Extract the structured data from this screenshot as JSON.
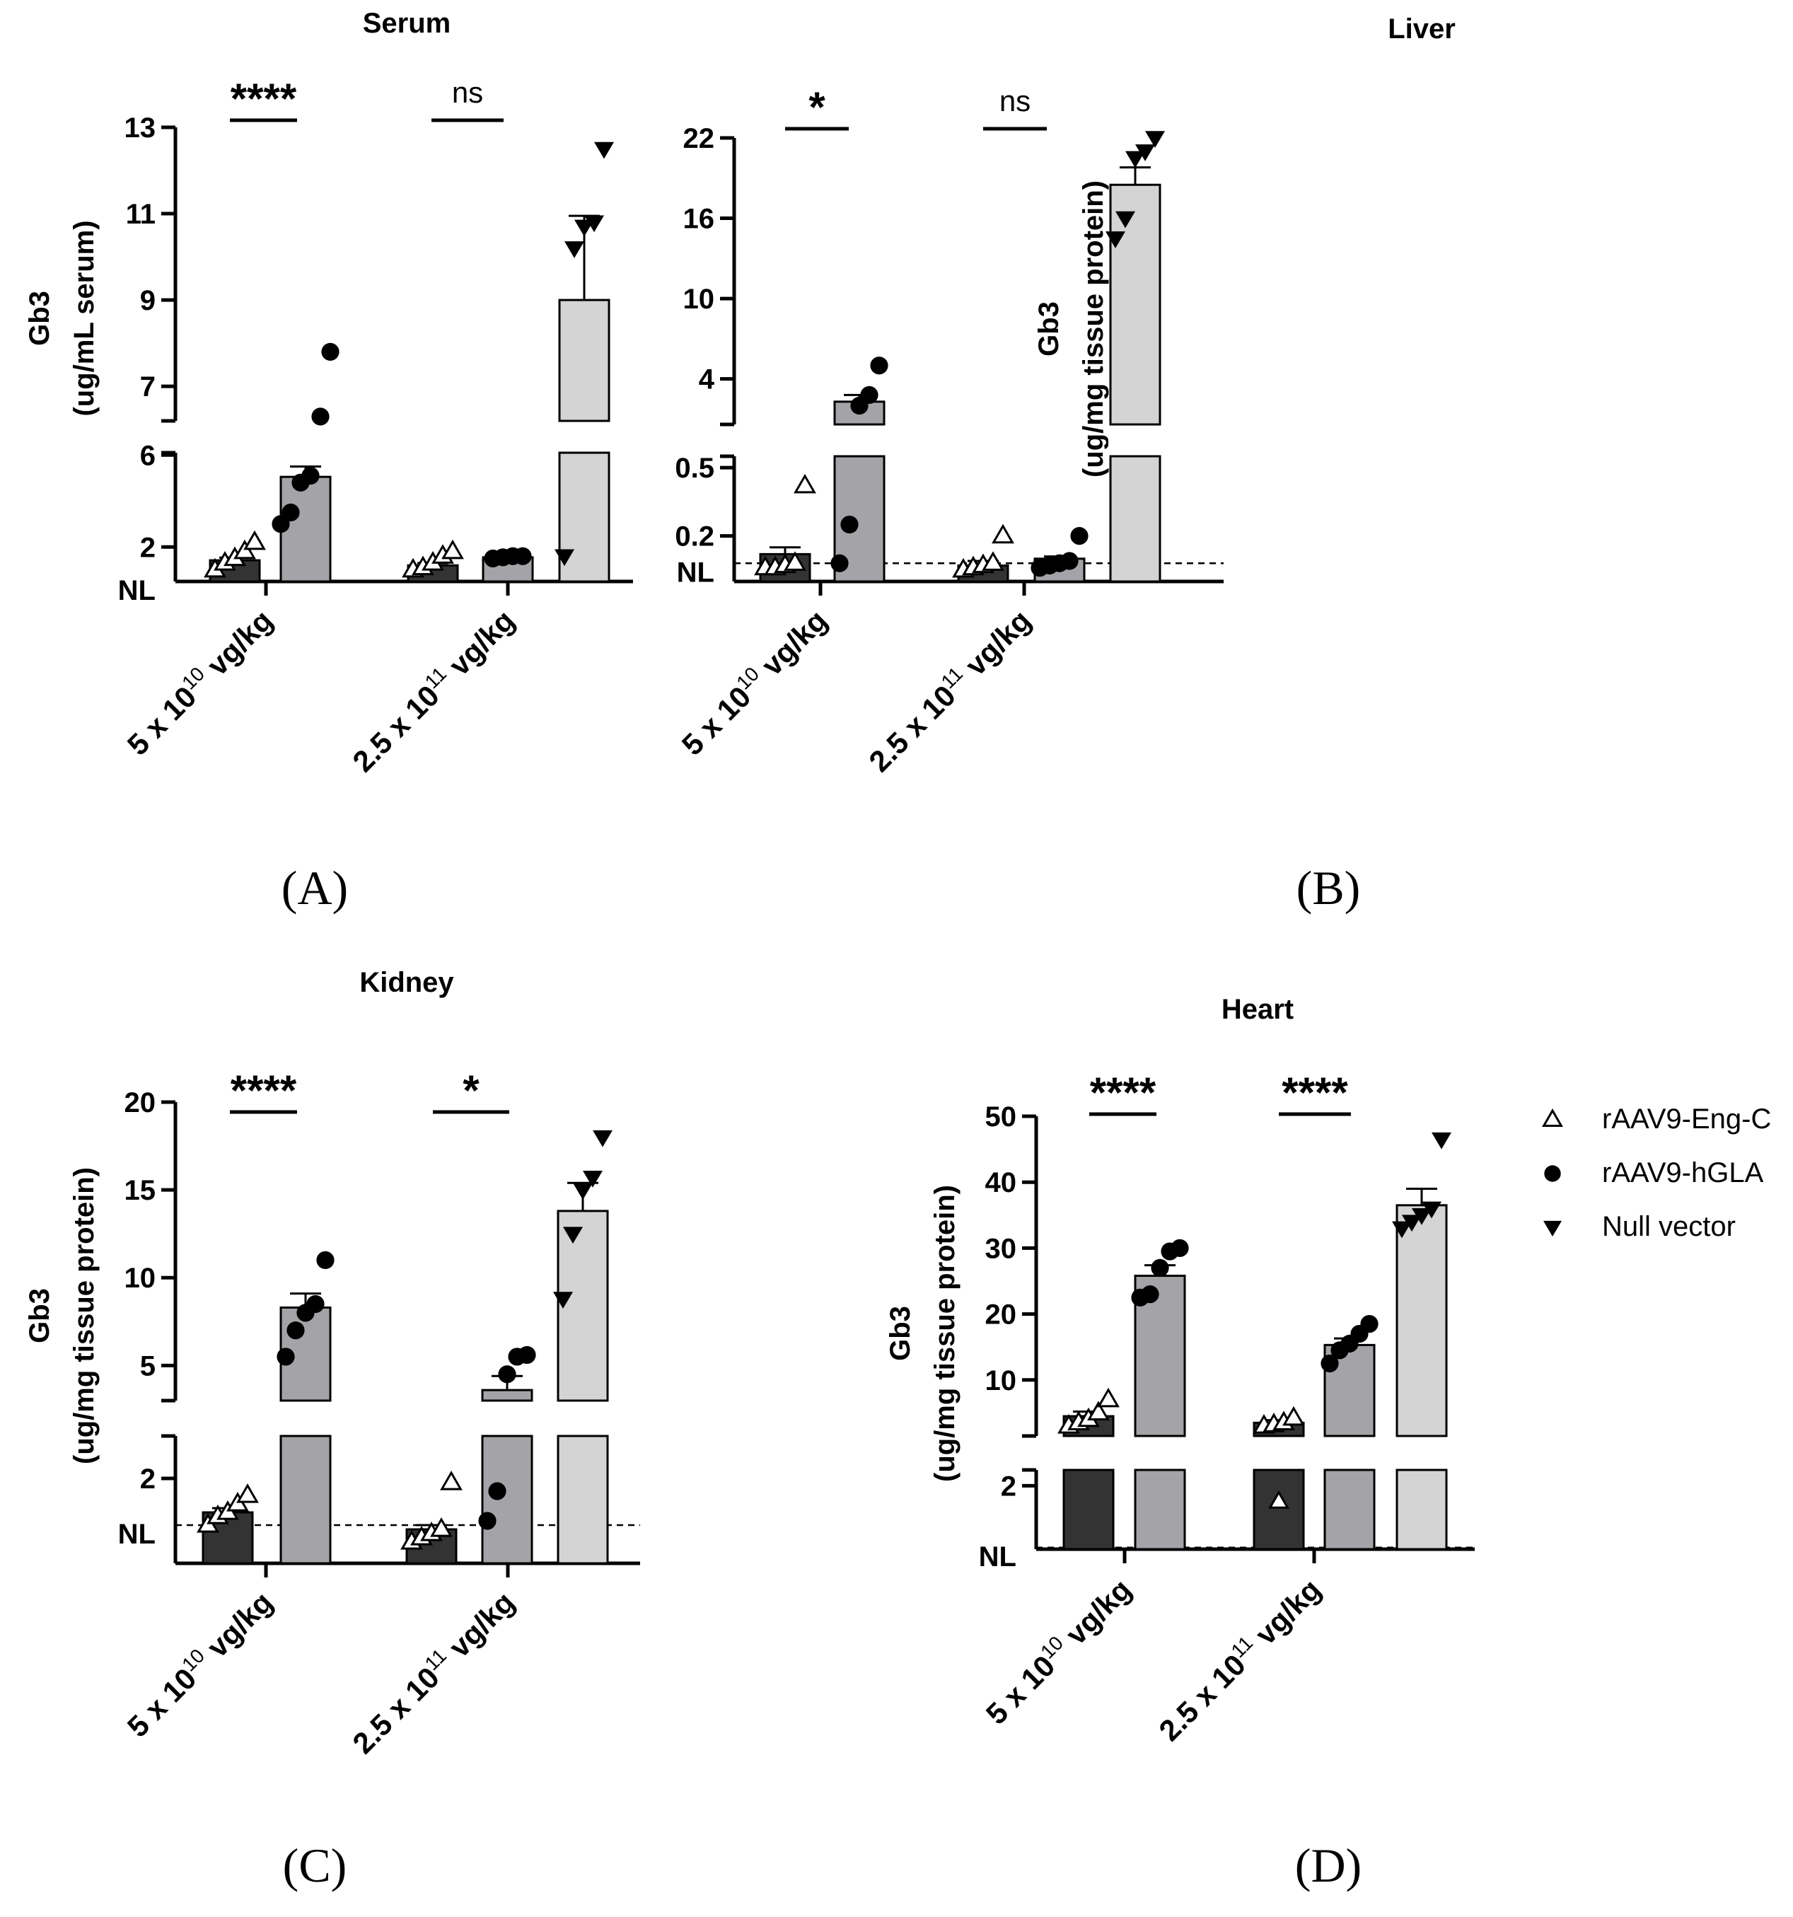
{
  "chart_data": [
    {
      "type": "bar",
      "panel_label": "(A)",
      "title": "Serum",
      "ylabel": "Gb3",
      "ylabel_units": "(ug/mL serum)",
      "baseline_label": "NL",
      "baseline_value": 0.5,
      "y_axis": {
        "broken": true,
        "lower": {
          "range": [
            0.5,
            6.1
          ],
          "ticks": [
            2,
            6
          ]
        },
        "upper": {
          "range": [
            6.2,
            13
          ],
          "ticks": [
            7,
            9,
            11,
            13
          ]
        }
      },
      "groups": [
        "5 x 10^10 vg/kg",
        "2.5 x 10^11 vg/kg"
      ],
      "series": [
        {
          "name": "rAAV9-Eng-C",
          "group": 0,
          "mean": 1.42,
          "sem": 0.12,
          "points": [
            1.0,
            1.3,
            1.5,
            1.8,
            2.2
          ]
        },
        {
          "name": "rAAV9-hGLA",
          "group": 0,
          "mean": 5.05,
          "sem": 0.45,
          "points": [
            3.0,
            3.5,
            4.8,
            5.1,
            6.3,
            7.8
          ]
        },
        {
          "name": "rAAV9-Eng-C",
          "group": 1,
          "mean": 1.2,
          "sem": 0.1,
          "points": [
            1.0,
            1.1,
            1.3,
            1.6,
            1.8
          ]
        },
        {
          "name": "rAAV9-hGLA",
          "group": 1,
          "mean": 1.55,
          "sem": 0.05,
          "points": [
            1.5,
            1.55,
            1.6,
            1.6
          ]
        },
        {
          "name": "Null vector",
          "group": 1,
          "mean": 9.0,
          "sem": 1.95,
          "points": [
            1.6,
            10.2,
            10.7,
            10.8,
            12.5
          ]
        }
      ],
      "significance": [
        {
          "group": 0,
          "label": "****"
        },
        {
          "group": 1,
          "label": "ns"
        }
      ]
    },
    {
      "type": "bar",
      "panel_label": "(B)",
      "title": "Liver",
      "ylabel": "Gb3",
      "ylabel_units": "(ug/mg tissue protein)",
      "baseline_label": "NL",
      "baseline_value": 0.08,
      "y_axis": {
        "broken": true,
        "lower": {
          "range": [
            0.0,
            0.55
          ],
          "tick_values": [
            0.2,
            0.5
          ],
          "tick_labels": [
            "0.2",
            "0.5"
          ]
        },
        "upper": {
          "range": [
            0.6,
            22
          ],
          "ticks": [
            4,
            10,
            16,
            22
          ]
        }
      },
      "groups": [
        "5 x 10^10 vg/kg",
        "2.5 x 10^11 vg/kg"
      ],
      "series": [
        {
          "name": "rAAV9-Eng-C",
          "group": 0,
          "mean": 0.12,
          "sem": 0.03,
          "points": [
            0.06,
            0.06,
            0.07,
            0.08,
            0.42
          ]
        },
        {
          "name": "rAAV9-hGLA",
          "group": 0,
          "mean": 2.3,
          "sem": 0.5,
          "points": [
            0.08,
            0.25,
            2.0,
            2.8,
            5.0
          ]
        },
        {
          "name": "rAAV9-Eng-C",
          "group": 1,
          "mean": 0.07,
          "sem": 0.02,
          "points": [
            0.05,
            0.06,
            0.07,
            0.08,
            0.2
          ]
        },
        {
          "name": "rAAV9-hGLA",
          "group": 1,
          "mean": 0.1,
          "sem": 0.01,
          "points": [
            0.06,
            0.07,
            0.08,
            0.09,
            0.2
          ]
        },
        {
          "name": "Null vector",
          "group": 1,
          "mean": 18.5,
          "sem": 1.3,
          "points": [
            14.5,
            16.0,
            20.5,
            21.0,
            22.0
          ]
        }
      ],
      "significance": [
        {
          "group": 0,
          "label": "*"
        },
        {
          "group": 1,
          "label": "ns"
        }
      ]
    },
    {
      "type": "bar",
      "panel_label": "(C)",
      "title": "Kidney",
      "ylabel": "Gb3",
      "ylabel_units": "(ug/mg tissue protein)",
      "baseline_label": "NL",
      "baseline_value": 0.9,
      "y_axis": {
        "broken": true,
        "lower": {
          "range": [
            0.0,
            3.0
          ],
          "ticks": [
            2
          ]
        },
        "upper": {
          "range": [
            3.0,
            20
          ],
          "ticks": [
            5,
            10,
            15,
            20
          ]
        }
      },
      "groups": [
        "5 x 10^10 vg/kg",
        "2.5 x 10^11 vg/kg"
      ],
      "series": [
        {
          "name": "rAAV9-Eng-C",
          "group": 0,
          "mean": 1.2,
          "sem": 0.1,
          "points": [
            0.9,
            1.1,
            1.2,
            1.4,
            1.6
          ]
        },
        {
          "name": "rAAV9-hGLA",
          "group": 0,
          "mean": 8.3,
          "sem": 0.8,
          "points": [
            5.5,
            7.0,
            8.0,
            8.5,
            11.0
          ]
        },
        {
          "name": "rAAV9-Eng-C",
          "group": 1,
          "mean": 0.8,
          "sem": 0.1,
          "points": [
            0.5,
            0.6,
            0.7,
            0.8,
            1.9
          ]
        },
        {
          "name": "rAAV9-hGLA",
          "group": 1,
          "mean": 3.6,
          "sem": 0.8,
          "points": [
            1.0,
            1.7,
            4.5,
            5.5,
            5.6
          ]
        },
        {
          "name": "Null vector",
          "group": 1,
          "mean": 13.8,
          "sem": 1.6,
          "points": [
            8.8,
            12.5,
            15.0,
            15.7,
            18.0
          ]
        }
      ],
      "significance": [
        {
          "group": 0,
          "label": "****"
        },
        {
          "group": 1,
          "label": "*"
        }
      ]
    },
    {
      "type": "bar",
      "panel_label": "(D)",
      "title": "Heart",
      "ylabel": "Gb3",
      "ylabel_units": "(ug/mg tissue protein)",
      "baseline_label": "NL",
      "baseline_value": 0.05,
      "y_axis": {
        "broken": true,
        "lower": {
          "range": [
            0.0,
            2.5
          ],
          "ticks": [
            2
          ]
        },
        "upper": {
          "range": [
            1.5,
            50
          ],
          "ticks": [
            10,
            20,
            30,
            40,
            50
          ]
        }
      },
      "groups": [
        "5 x 10^10 vg/kg",
        "2.5 x 10^11 vg/kg"
      ],
      "series": [
        {
          "name": "rAAV9-Eng-C",
          "group": 0,
          "mean": 4.5,
          "sem": 0.7,
          "points": [
            3.0,
            3.5,
            4.0,
            5.0,
            7.0
          ]
        },
        {
          "name": "rAAV9-hGLA",
          "group": 0,
          "mean": 25.8,
          "sem": 1.6,
          "points": [
            22.5,
            23.0,
            27.0,
            29.5,
            30.0
          ]
        },
        {
          "name": "rAAV9-Eng-C",
          "group": 1,
          "mean": 3.5,
          "sem": 0.4,
          "points": [
            3.0,
            3.2,
            3.5,
            4.2
          ]
        },
        {
          "name": "rAAV9-hGLA",
          "group": 1,
          "mean": 15.3,
          "sem": 1.0,
          "points": [
            12.5,
            14.5,
            15.5,
            17.0,
            18.5
          ]
        },
        {
          "name": "Null vector",
          "group": 1,
          "mean": 36.5,
          "sem": 2.5,
          "points": [
            33.0,
            34.0,
            35.0,
            36.0,
            46.5
          ]
        }
      ],
      "lower_points": [
        {
          "series": "rAAV9-Eng-C",
          "group": 1,
          "value": 1.5
        }
      ],
      "significance": [
        {
          "group": 0,
          "label": "****"
        },
        {
          "group": 1,
          "label": "****"
        }
      ]
    }
  ],
  "legend": [
    {
      "name": "rAAV9-Eng-C",
      "marker": "open-triangle-up"
    },
    {
      "name": "rAAV9-hGLA",
      "marker": "filled-circle"
    },
    {
      "name": "Null vector",
      "marker": "filled-triangle-down"
    }
  ],
  "x_labels": {
    "dose1": {
      "coef": "5 x 10",
      "exp": "10",
      "unit": "vg/kg"
    },
    "dose2": {
      "coef": "2.5 x 10",
      "exp": "11",
      "unit": "vg/kg"
    }
  },
  "colors": {
    "eng_c_bar": "#333333",
    "hgla_bar": "#a4a4a8",
    "null_bar": "#d4d4d4",
    "ink": "#000000"
  }
}
